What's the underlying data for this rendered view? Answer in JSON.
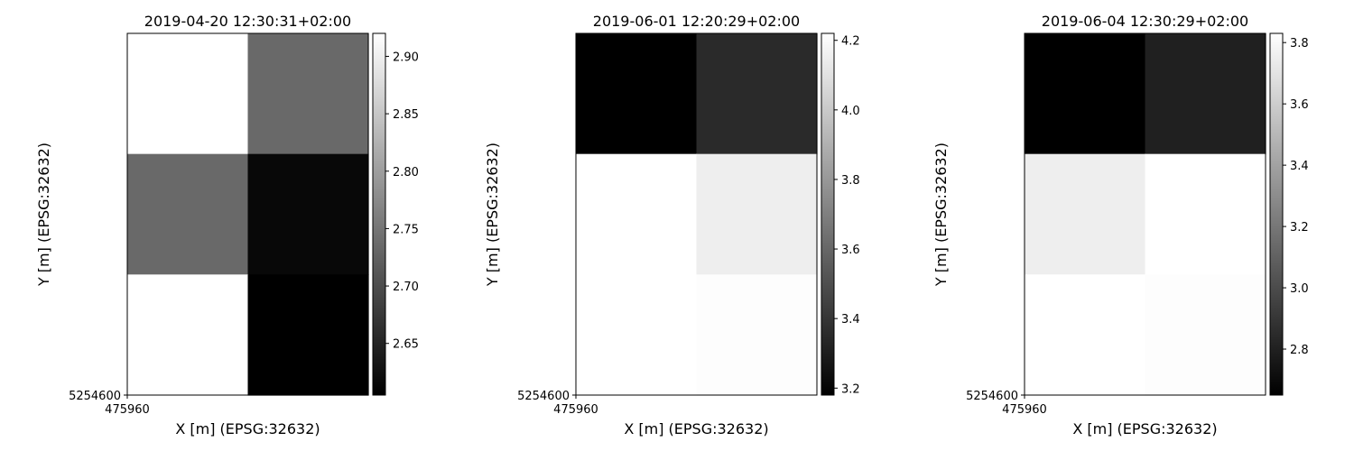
{
  "chart_data": [
    {
      "type": "heatmap",
      "title": "2019-04-20 12:30:31+02:00",
      "xlabel": "X [m] (EPSG:32632)",
      "ylabel": "Y [m] (EPSG:32632)",
      "x_tick": "475960",
      "y_tick": "5254600",
      "colormap": "gray",
      "grid": false,
      "rows": 3,
      "cols": 2,
      "values": [
        [
          2.92,
          2.735
        ],
        [
          2.735,
          2.615
        ],
        [
          2.92,
          2.605
        ]
      ],
      "colorbar": {
        "range": [
          2.605,
          2.92
        ],
        "ticks": [
          "2.65",
          "2.70",
          "2.75",
          "2.80",
          "2.85",
          "2.90"
        ]
      }
    },
    {
      "type": "heatmap",
      "title": "2019-06-01 12:20:29+02:00",
      "xlabel": "X [m] (EPSG:32632)",
      "ylabel": "Y [m] (EPSG:32632)",
      "x_tick": "475960",
      "y_tick": "5254600",
      "colormap": "gray",
      "grid": false,
      "rows": 3,
      "cols": 2,
      "values": [
        [
          3.18,
          3.35
        ],
        [
          4.22,
          4.15
        ],
        [
          4.22,
          4.21
        ]
      ],
      "colorbar": {
        "range": [
          3.18,
          4.22
        ],
        "ticks": [
          "3.2",
          "3.4",
          "3.6",
          "3.8",
          "4.0",
          "4.2"
        ]
      }
    },
    {
      "type": "heatmap",
      "title": "2019-06-04 12:30:29+02:00",
      "xlabel": "X [m] (EPSG:32632)",
      "ylabel": "Y [m] (EPSG:32632)",
      "x_tick": "475960",
      "y_tick": "5254600",
      "colormap": "gray",
      "grid": false,
      "rows": 3,
      "cols": 2,
      "values": [
        [
          2.65,
          2.8
        ],
        [
          3.75,
          3.83
        ],
        [
          3.83,
          3.82
        ]
      ],
      "colorbar": {
        "range": [
          2.65,
          3.83
        ],
        "ticks": [
          "2.8",
          "3.0",
          "3.2",
          "3.4",
          "3.6",
          "3.8"
        ]
      }
    }
  ]
}
